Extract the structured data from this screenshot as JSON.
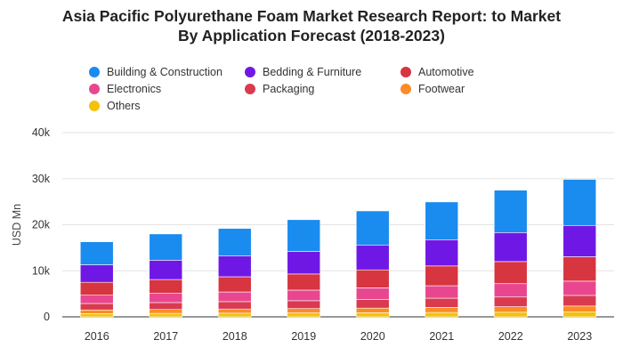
{
  "title_line1": "Asia Pacific Polyurethane Foam Market Research Report: to Market",
  "title_line2": "By Application Forecast (2018-2023)",
  "chart_data": {
    "type": "bar",
    "stacked": true,
    "title": "Asia Pacific Polyurethane Foam Market Research Report: to Market By Application Forecast (2018-2023)",
    "xlabel": "",
    "ylabel": "USD Mn",
    "ylim": [
      0,
      40000
    ],
    "yticks": [
      0,
      10000,
      20000,
      30000,
      40000
    ],
    "ytick_labels": [
      "0",
      "10k",
      "20k",
      "30k",
      "40k"
    ],
    "grid": true,
    "legend_position": "top",
    "categories": [
      "2016",
      "2017",
      "2018",
      "2019",
      "2020",
      "2021",
      "2022",
      "2023"
    ],
    "series": [
      {
        "name": "Others",
        "color": "#f4c20d",
        "values": [
          700,
          750,
          800,
          850,
          900,
          950,
          1000,
          1050
        ]
      },
      {
        "name": "Footwear",
        "color": "#fb8c28",
        "values": [
          800,
          850,
          900,
          950,
          1000,
          1100,
          1200,
          1300
        ]
      },
      {
        "name": "Packaging",
        "color": "#d93a4f",
        "values": [
          1400,
          1500,
          1600,
          1700,
          1900,
          2000,
          2100,
          2300
        ]
      },
      {
        "name": "Electronics",
        "color": "#e8478f",
        "values": [
          1800,
          2000,
          2100,
          2300,
          2500,
          2700,
          2900,
          3100
        ]
      },
      {
        "name": "Automotive",
        "color": "#d7353f",
        "values": [
          2800,
          3000,
          3300,
          3500,
          3900,
          4300,
          4800,
          5300
        ]
      },
      {
        "name": "Bedding & Furniture",
        "color": "#6f18e6",
        "values": [
          3800,
          4200,
          4500,
          4900,
          5400,
          5700,
          6300,
          6800
        ]
      },
      {
        "name": "Building & Construction",
        "color": "#1a8cf0",
        "values": [
          5000,
          5700,
          6000,
          6900,
          7400,
          8200,
          9200,
          10000
        ]
      }
    ]
  },
  "legend": [
    {
      "name": "Building & Construction",
      "color": "#1a8cf0"
    },
    {
      "name": "Bedding & Furniture",
      "color": "#6f18e6"
    },
    {
      "name": "Automotive",
      "color": "#d7353f"
    },
    {
      "name": "Electronics",
      "color": "#e8478f"
    },
    {
      "name": "Packaging",
      "color": "#d93a4f"
    },
    {
      "name": "Footwear",
      "color": "#fb8c28"
    },
    {
      "name": "Others",
      "color": "#f4c20d"
    }
  ]
}
